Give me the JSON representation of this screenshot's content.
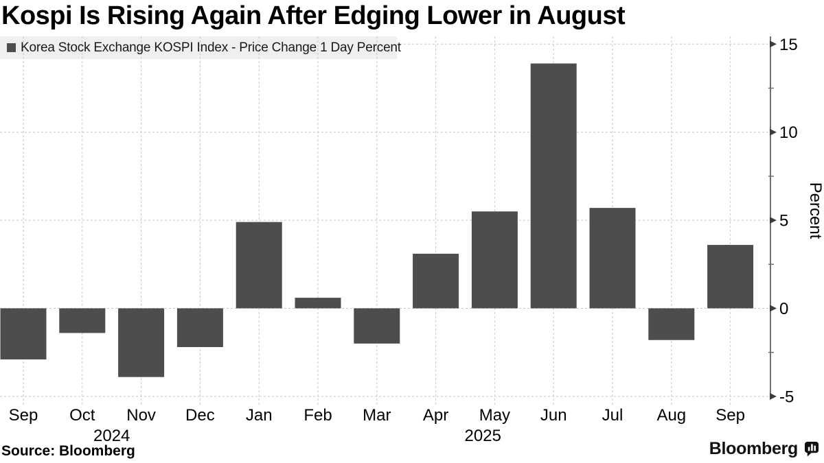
{
  "page": {
    "title": "Kospi Is Rising Again After Edging Lower in August",
    "source": "Source: Bloomberg"
  },
  "legend": {
    "label": "Korea Stock Exchange KOSPI Index - Price Change 1 Day Percent",
    "swatch_color": "#4d4d4d",
    "background": "#efefef"
  },
  "branding": {
    "logo_text": "Bloomberg",
    "logo_icon": "bloomberg-chart-bubble-icon"
  },
  "chart_data": {
    "type": "bar",
    "title": "Kospi Is Rising Again After Edging Lower in August",
    "series": [
      {
        "name": "Korea Stock Exchange KOSPI Index - Price Change 1 Day Percent",
        "values": [
          -2.9,
          -1.4,
          -3.9,
          -2.2,
          4.9,
          0.6,
          -2.0,
          3.1,
          5.5,
          13.9,
          5.7,
          -1.8,
          3.6
        ]
      }
    ],
    "categories": [
      "Sep",
      "Oct",
      "Nov",
      "Dec",
      "Jan",
      "Feb",
      "Mar",
      "Apr",
      "May",
      "Jun",
      "Jul",
      "Aug",
      "Sep"
    ],
    "category_years": [
      "2024",
      "2024",
      "2024",
      "2024",
      "2025",
      "2025",
      "2025",
      "2025",
      "2025",
      "2025",
      "2025",
      "2025",
      "2025"
    ],
    "year_labels": [
      {
        "label": "2024",
        "index": 1.5
      },
      {
        "label": "2025",
        "index": 7.8
      }
    ],
    "xlabel": "",
    "ylabel": "Percent",
    "ylim": [
      -5,
      15
    ],
    "yticks_major": [
      15,
      10,
      5,
      0,
      -5
    ],
    "yticks_minor": [
      12.5,
      7.5,
      2.5,
      -2.5
    ],
    "grid": true,
    "legend_position": "top-left",
    "bar_color": "#4d4d4d",
    "grid_color": "#c6c6c6",
    "axis_color": "#707070",
    "tick_arrow_color": "#3d3d3d",
    "label_color": "#000000"
  }
}
